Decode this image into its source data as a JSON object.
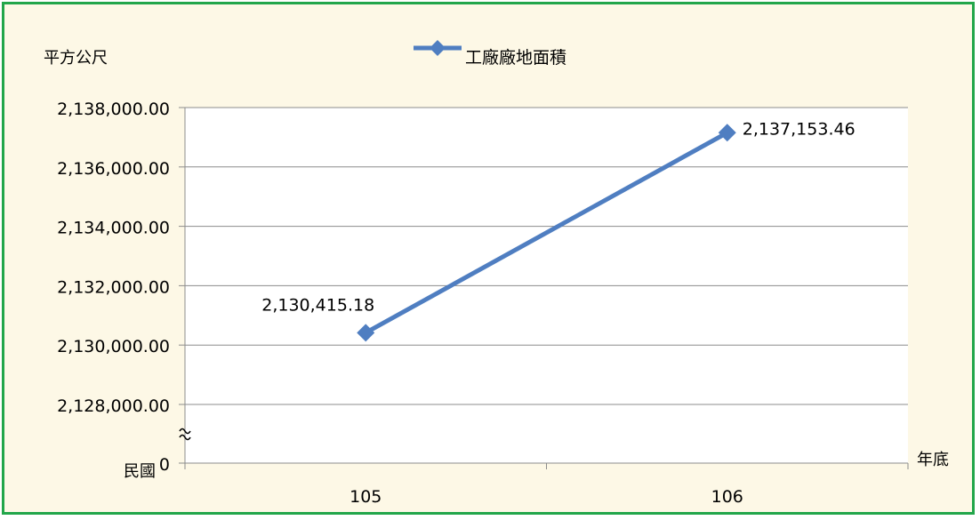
{
  "chart_data": {
    "type": "line",
    "ylabel": "平方公尺",
    "xlabel_left": "民國",
    "xlabel_right": "年底",
    "legend": "工廠廠地面積",
    "legend_position": "top-center",
    "categories": [
      "105",
      "106"
    ],
    "series": [
      {
        "name": "工廠廠地面積",
        "values": [
          2130415.18,
          2137153.46
        ],
        "data_labels": [
          "2,130,415.18",
          "2,137,153.46"
        ]
      }
    ],
    "y_ticks": [
      "0",
      "2,128,000.00",
      "2,130,000.00",
      "2,132,000.00",
      "2,134,000.00",
      "2,136,000.00",
      "2,138,000.00"
    ],
    "ylim": [
      2128000,
      2138000
    ],
    "axis_break": true,
    "grid": true,
    "colors": {
      "series": "#4f7ec1",
      "frame_border": "#22a64a",
      "background": "#fdf8e6",
      "plot": "#ffffff"
    }
  }
}
